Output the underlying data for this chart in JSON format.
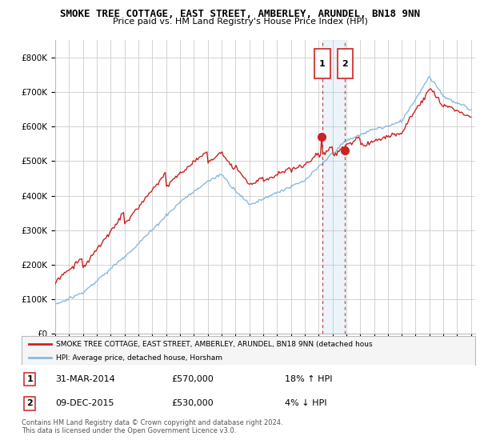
{
  "title": "SMOKE TREE COTTAGE, EAST STREET, AMBERLEY, ARUNDEL, BN18 9NN",
  "subtitle": "Price paid vs. HM Land Registry's House Price Index (HPI)",
  "ylim": [
    0,
    850000
  ],
  "yticks": [
    0,
    100000,
    200000,
    300000,
    400000,
    500000,
    600000,
    700000,
    800000
  ],
  "ytick_labels": [
    "£0",
    "£100K",
    "£200K",
    "£300K",
    "£400K",
    "£500K",
    "£600K",
    "£700K",
    "£800K"
  ],
  "sale1_year": 2014.25,
  "sale1_price": 570000,
  "sale2_year": 2015.92,
  "sale2_price": 530000,
  "sale1_date": "31-MAR-2014",
  "sale1_hpi": "18% ↑ HPI",
  "sale2_date": "09-DEC-2015",
  "sale2_hpi": "4% ↓ HPI",
  "line_color_red": "#cc2222",
  "line_color_blue": "#88bbdd",
  "grid_color": "#cccccc",
  "background_color": "#ffffff",
  "title_fontsize": 9,
  "subtitle_fontsize": 8,
  "tick_fontsize": 7.5,
  "footer_text": "Contains HM Land Registry data © Crown copyright and database right 2024.\nThis data is licensed under the Open Government Licence v3.0.",
  "legend_line1": "SMOKE TREE COTTAGE, EAST STREET, AMBERLEY, ARUNDEL, BN18 9NN (detached hous",
  "legend_line2": "HPI: Average price, detached house, Horsham"
}
